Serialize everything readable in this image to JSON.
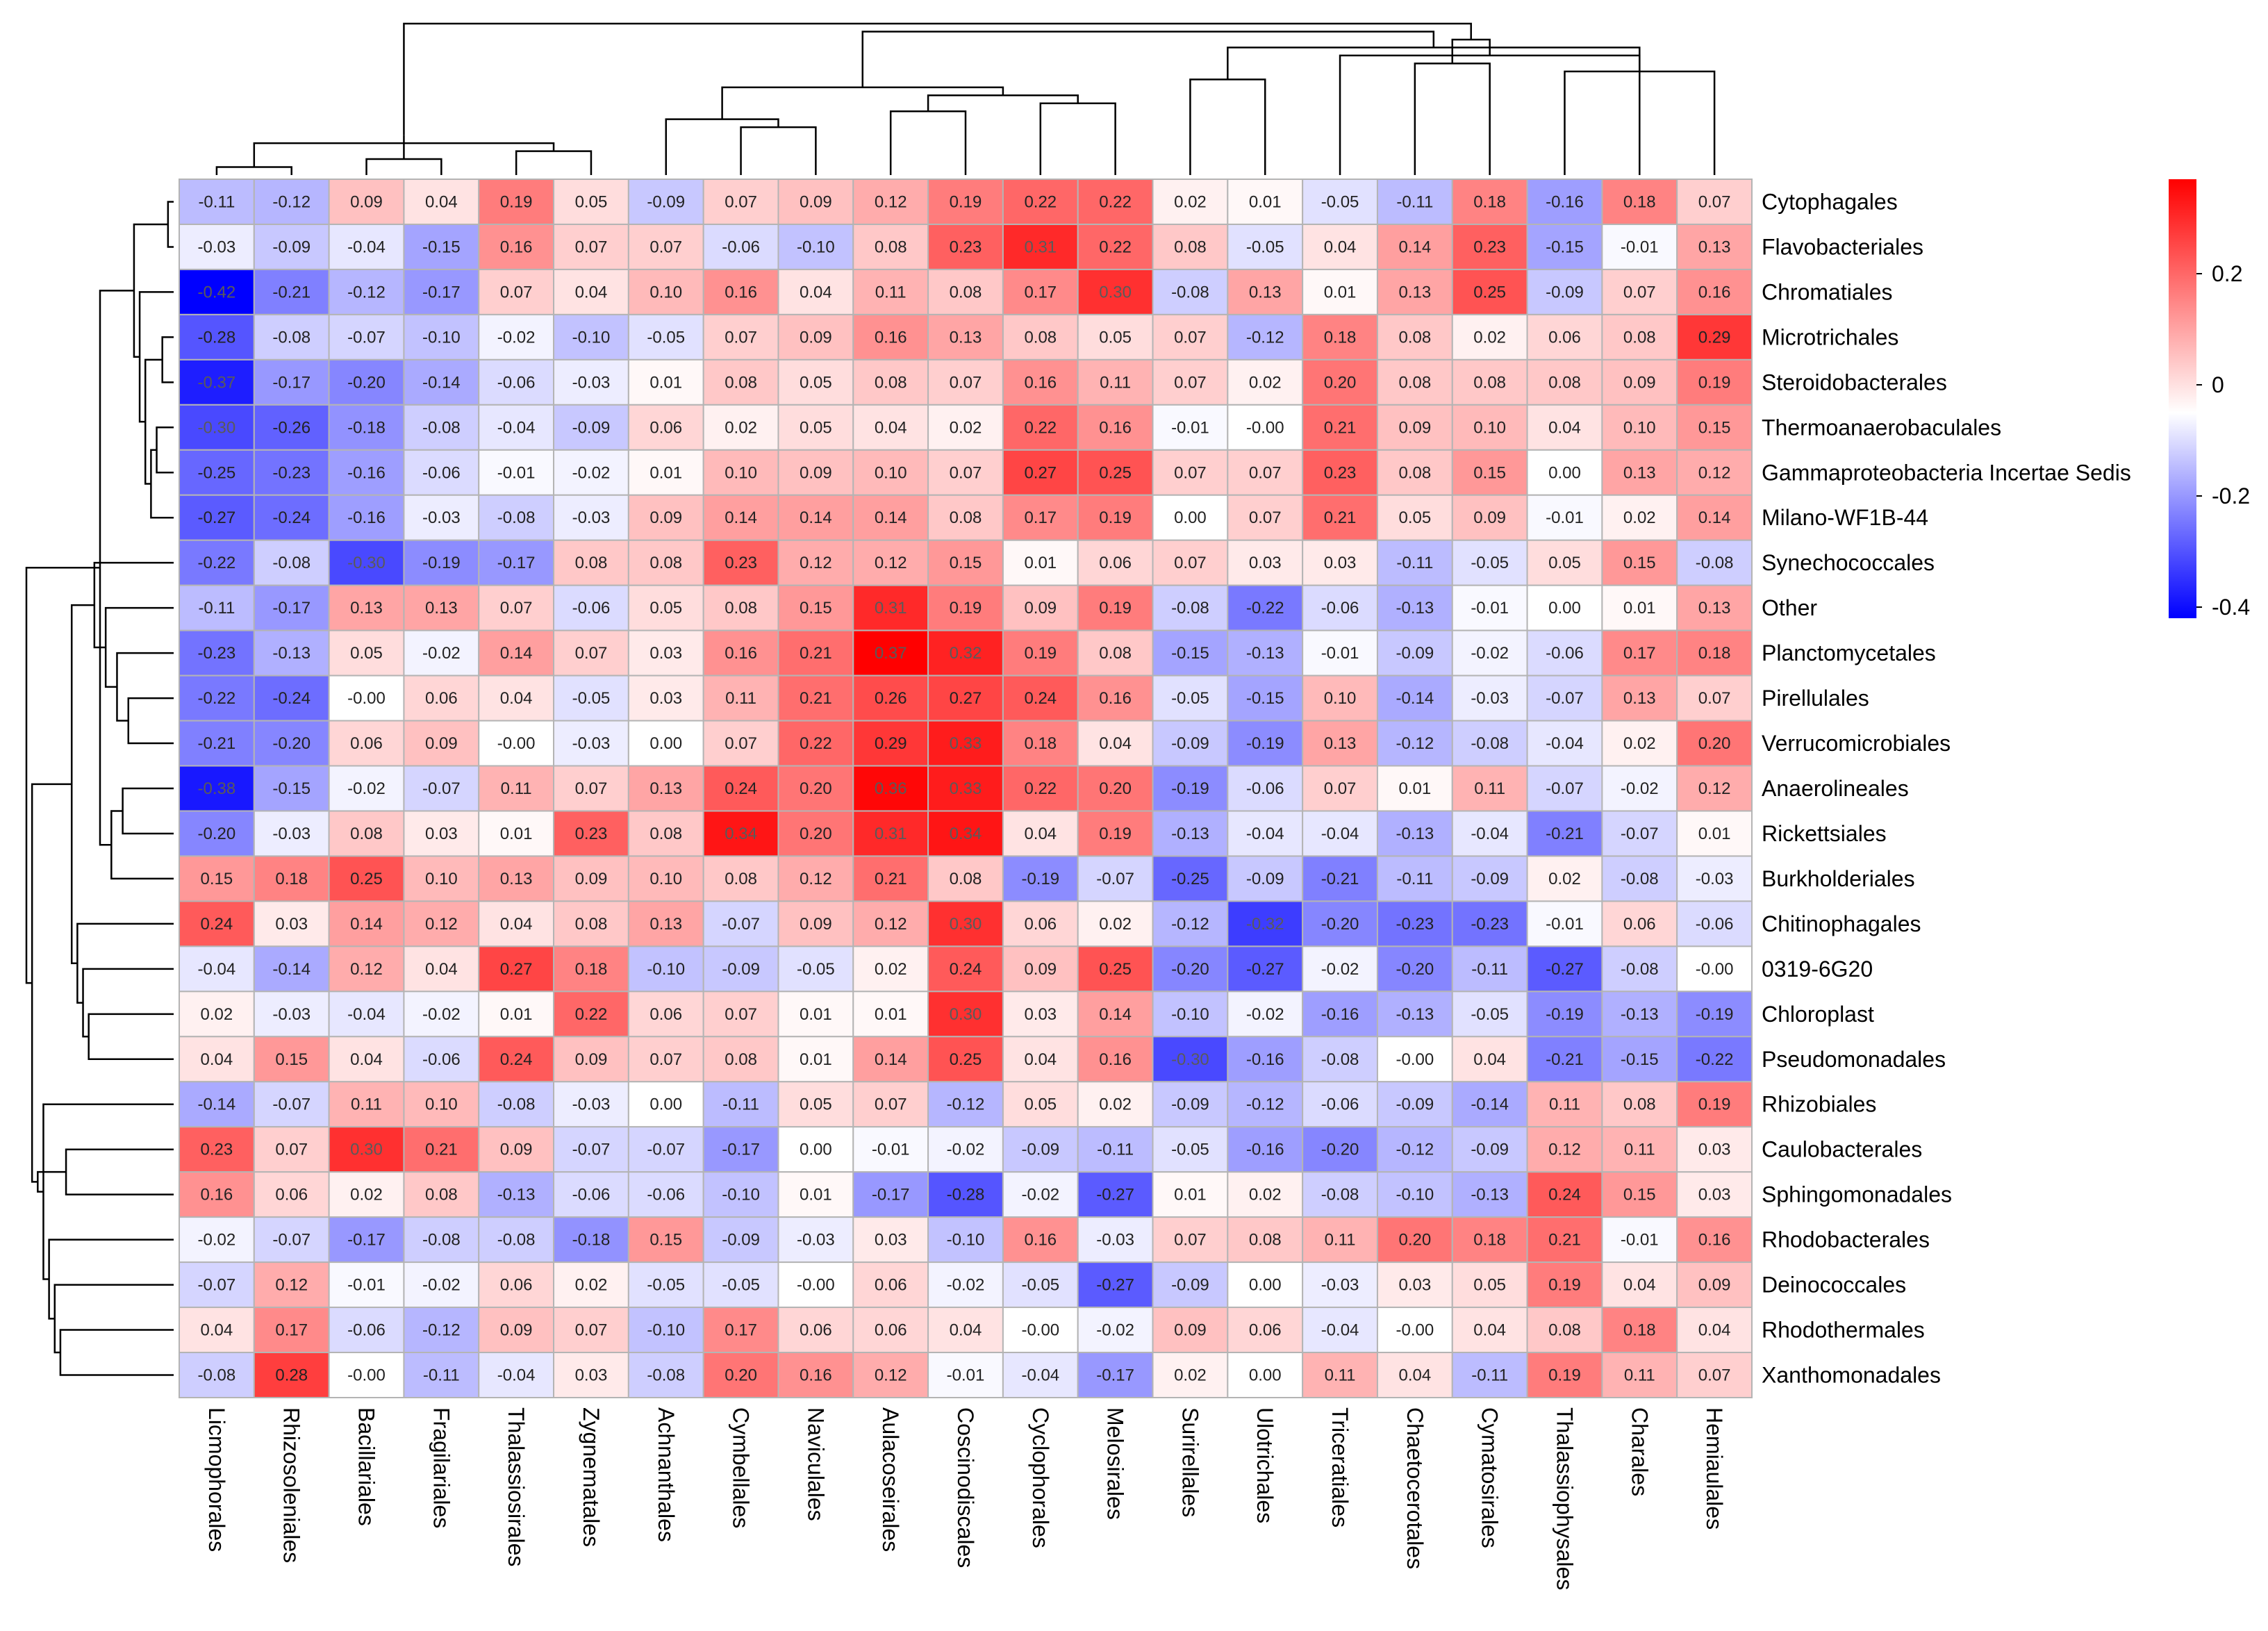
{
  "chart_data": {
    "type": "heatmap",
    "title": "",
    "columns": [
      "Licmophorales",
      "Rhizosoleniales",
      "Bacillariales",
      "Fragilariales",
      "Thalassiosirales",
      "Zygnematales",
      "Achnanthales",
      "Cymbellales",
      "Naviculales",
      "Aulacoseirales",
      "Coscinodiscales",
      "Cyclophorales",
      "Melosirales",
      "Surirellales",
      "Ulotrichales",
      "Triceratiales",
      "Chaetocerotales",
      "Cymatosirales",
      "Thalassiophysales",
      "Charales",
      "Hemiaulales"
    ],
    "rows": [
      "Cytophagales",
      "Flavobacteriales",
      "Chromatiales",
      "Microtrichales",
      "Steroidobacterales",
      "Thermoanaerobaculales",
      "Gammaproteobacteria Incertae Sedis",
      "Milano-WF1B-44",
      "Synechococcales",
      "Other",
      "Planctomycetales",
      "Pirellulales",
      "Verrucomicrobiales",
      "Anaerolineales",
      "Rickettsiales",
      "Burkholderiales",
      "Chitinophagales",
      "0319-6G20",
      "Chloroplast",
      "Pseudomonadales",
      "Rhizobiales",
      "Caulobacterales",
      "Sphingomonadales",
      "Rhodobacterales",
      "Deinococcales",
      "Rhodothermales",
      "Xanthomonadales"
    ],
    "values": [
      [
        -0.11,
        -0.12,
        0.09,
        0.04,
        0.19,
        0.05,
        -0.09,
        0.07,
        0.09,
        0.12,
        0.19,
        0.22,
        0.22,
        0.02,
        0.01,
        -0.05,
        -0.11,
        0.18,
        -0.16,
        0.18,
        0.07
      ],
      [
        -0.03,
        -0.09,
        -0.04,
        -0.15,
        0.16,
        0.07,
        0.07,
        -0.06,
        -0.1,
        0.08,
        0.23,
        0.31,
        0.22,
        0.08,
        -0.05,
        0.04,
        0.14,
        0.23,
        -0.15,
        -0.01,
        0.13
      ],
      [
        -0.42,
        -0.21,
        -0.12,
        -0.17,
        0.07,
        0.04,
        0.1,
        0.16,
        0.04,
        0.11,
        0.08,
        0.17,
        0.3,
        -0.08,
        0.13,
        0.01,
        0.13,
        0.25,
        -0.09,
        0.07,
        0.16
      ],
      [
        -0.28,
        -0.08,
        -0.07,
        -0.1,
        -0.02,
        -0.1,
        -0.05,
        0.07,
        0.09,
        0.16,
        0.13,
        0.08,
        0.05,
        0.07,
        -0.12,
        0.18,
        0.08,
        0.02,
        0.06,
        0.08,
        0.29
      ],
      [
        -0.37,
        -0.17,
        -0.2,
        -0.14,
        -0.06,
        -0.03,
        0.01,
        0.08,
        0.05,
        0.08,
        0.07,
        0.16,
        0.11,
        0.07,
        0.02,
        0.2,
        0.08,
        0.08,
        0.08,
        0.09,
        0.19
      ],
      [
        -0.3,
        -0.26,
        -0.18,
        -0.08,
        -0.04,
        -0.09,
        0.06,
        0.02,
        0.05,
        0.04,
        0.02,
        0.22,
        0.16,
        -0.01,
        -0.0,
        0.21,
        0.09,
        0.1,
        0.04,
        0.1,
        0.15
      ],
      [
        -0.25,
        -0.23,
        -0.16,
        -0.06,
        -0.01,
        -0.02,
        0.01,
        0.1,
        0.09,
        0.1,
        0.07,
        0.27,
        0.25,
        0.07,
        0.07,
        0.23,
        0.08,
        0.15,
        0.0,
        0.13,
        0.12
      ],
      [
        -0.27,
        -0.24,
        -0.16,
        -0.03,
        -0.08,
        -0.03,
        0.09,
        0.14,
        0.14,
        0.14,
        0.08,
        0.17,
        0.19,
        0.0,
        0.07,
        0.21,
        0.05,
        0.09,
        -0.01,
        0.02,
        0.14
      ],
      [
        -0.22,
        -0.08,
        -0.3,
        -0.19,
        -0.17,
        0.08,
        0.08,
        0.23,
        0.12,
        0.12,
        0.15,
        0.01,
        0.06,
        0.07,
        0.03,
        0.03,
        -0.11,
        -0.05,
        0.05,
        0.15,
        -0.08
      ],
      [
        -0.11,
        -0.17,
        0.13,
        0.13,
        0.07,
        -0.06,
        0.05,
        0.08,
        0.15,
        0.31,
        0.19,
        0.09,
        0.19,
        -0.08,
        -0.22,
        -0.06,
        -0.13,
        -0.01,
        0.0,
        0.01,
        0.13
      ],
      [
        -0.23,
        -0.13,
        0.05,
        -0.02,
        0.14,
        0.07,
        0.03,
        0.16,
        0.21,
        0.37,
        0.32,
        0.19,
        0.08,
        -0.15,
        -0.13,
        -0.01,
        -0.09,
        -0.02,
        -0.06,
        0.17,
        0.18
      ],
      [
        -0.22,
        -0.24,
        -0.0,
        0.06,
        0.04,
        -0.05,
        0.03,
        0.11,
        0.21,
        0.26,
        0.27,
        0.24,
        0.16,
        -0.05,
        -0.15,
        0.1,
        -0.14,
        -0.03,
        -0.07,
        0.13,
        0.07
      ],
      [
        -0.21,
        -0.2,
        0.06,
        0.09,
        -0.0,
        -0.03,
        0.0,
        0.07,
        0.22,
        0.29,
        0.33,
        0.18,
        0.04,
        -0.09,
        -0.19,
        0.13,
        -0.12,
        -0.08,
        -0.04,
        0.02,
        0.2
      ],
      [
        -0.38,
        -0.15,
        -0.02,
        -0.07,
        0.11,
        0.07,
        0.13,
        0.24,
        0.2,
        0.36,
        0.33,
        0.22,
        0.2,
        -0.19,
        -0.06,
        0.07,
        0.01,
        0.11,
        -0.07,
        -0.02,
        0.12
      ],
      [
        -0.2,
        -0.03,
        0.08,
        0.03,
        0.01,
        0.23,
        0.08,
        0.34,
        0.2,
        0.31,
        0.34,
        0.04,
        0.19,
        -0.13,
        -0.04,
        -0.04,
        -0.13,
        -0.04,
        -0.21,
        -0.07,
        0.01
      ],
      [
        0.15,
        0.18,
        0.25,
        0.1,
        0.13,
        0.09,
        0.1,
        0.08,
        0.12,
        0.21,
        0.08,
        -0.19,
        -0.07,
        -0.25,
        -0.09,
        -0.21,
        -0.11,
        -0.09,
        0.02,
        -0.08,
        -0.03
      ],
      [
        0.24,
        0.03,
        0.14,
        0.12,
        0.04,
        0.08,
        0.13,
        -0.07,
        0.09,
        0.12,
        0.3,
        0.06,
        0.02,
        -0.12,
        -0.32,
        -0.2,
        -0.23,
        -0.23,
        -0.01,
        0.06,
        -0.06
      ],
      [
        -0.04,
        -0.14,
        0.12,
        0.04,
        0.27,
        0.18,
        -0.1,
        -0.09,
        -0.05,
        0.02,
        0.24,
        0.09,
        0.25,
        -0.2,
        -0.27,
        -0.02,
        -0.2,
        -0.11,
        -0.27,
        -0.08,
        -0.0
      ],
      [
        0.02,
        -0.03,
        -0.04,
        -0.02,
        0.01,
        0.22,
        0.06,
        0.07,
        0.01,
        0.01,
        0.3,
        0.03,
        0.14,
        -0.1,
        -0.02,
        -0.16,
        -0.13,
        -0.05,
        -0.19,
        -0.13,
        -0.19
      ],
      [
        0.04,
        0.15,
        0.04,
        -0.06,
        0.24,
        0.09,
        0.07,
        0.08,
        0.01,
        0.14,
        0.25,
        0.04,
        0.16,
        -0.3,
        -0.16,
        -0.08,
        -0.0,
        0.04,
        -0.21,
        -0.15,
        -0.22
      ],
      [
        -0.14,
        -0.07,
        0.11,
        0.1,
        -0.08,
        -0.03,
        0.0,
        -0.11,
        0.05,
        0.07,
        -0.12,
        0.05,
        0.02,
        -0.09,
        -0.12,
        -0.06,
        -0.09,
        -0.14,
        0.11,
        0.08,
        0.19
      ],
      [
        0.23,
        0.07,
        0.3,
        0.21,
        0.09,
        -0.07,
        -0.07,
        -0.17,
        0.0,
        -0.01,
        -0.02,
        -0.09,
        -0.11,
        -0.05,
        -0.16,
        -0.2,
        -0.12,
        -0.09,
        0.12,
        0.11,
        0.03
      ],
      [
        0.16,
        0.06,
        0.02,
        0.08,
        -0.13,
        -0.06,
        -0.06,
        -0.1,
        0.01,
        -0.17,
        -0.28,
        -0.02,
        -0.27,
        0.01,
        0.02,
        -0.08,
        -0.1,
        -0.13,
        0.24,
        0.15,
        0.03
      ],
      [
        -0.02,
        -0.07,
        -0.17,
        -0.08,
        -0.08,
        -0.18,
        0.15,
        -0.09,
        -0.03,
        0.03,
        -0.1,
        0.16,
        -0.03,
        0.07,
        0.08,
        0.11,
        0.2,
        0.18,
        0.21,
        -0.01,
        0.16
      ],
      [
        -0.07,
        0.12,
        -0.01,
        -0.02,
        0.06,
        0.02,
        -0.05,
        -0.05,
        -0.0,
        0.06,
        -0.02,
        -0.05,
        -0.27,
        -0.09,
        0.0,
        -0.03,
        0.03,
        0.05,
        0.19,
        0.04,
        0.09
      ],
      [
        0.04,
        0.17,
        -0.06,
        -0.12,
        0.09,
        0.07,
        -0.1,
        0.17,
        0.06,
        0.06,
        0.04,
        -0.0,
        -0.02,
        0.09,
        0.06,
        -0.04,
        -0.0,
        0.04,
        0.08,
        0.18,
        0.04
      ],
      [
        -0.08,
        0.28,
        -0.0,
        -0.11,
        -0.04,
        0.03,
        -0.08,
        0.2,
        0.16,
        0.12,
        -0.01,
        -0.04,
        -0.17,
        0.02,
        0.0,
        0.11,
        0.04,
        -0.11,
        0.19,
        0.11,
        0.07
      ]
    ],
    "value_range": [
      -0.42,
      0.37
    ],
    "color_scale": {
      "low": "#0000ff",
      "mid": "#ffffff",
      "high": "#ff0000"
    },
    "cell_border_color": "#b4b4b4",
    "legend": {
      "ticks": [
        0.2,
        0,
        -0.2,
        -0.4
      ],
      "tick_labels": [
        "0.2",
        "0",
        "-0.2",
        "-0.4"
      ],
      "position": "right"
    },
    "column_dendrogram": [
      [
        0,
        1
      ],
      [
        2,
        3
      ],
      [
        4,
        5
      ],
      [
        21,
        23
      ],
      [
        22,
        24
      ],
      [
        7,
        8
      ],
      [
        6,
        26
      ],
      [
        9,
        10
      ],
      [
        11,
        12
      ],
      [
        28,
        29
      ],
      [
        27,
        30
      ],
      [
        13,
        14
      ],
      [
        18,
        20
      ],
      [
        16,
        17
      ],
      [
        15,
        33
      ],
      [
        32,
        19
      ],
      [
        34,
        35
      ],
      [
        31,
        36
      ],
      [
        25,
        37
      ]
    ],
    "row_dendrogram": [
      [
        0,
        1
      ],
      [
        3,
        4
      ],
      [
        5,
        6
      ],
      [
        29,
        7
      ],
      [
        28,
        30
      ],
      [
        2,
        31
      ],
      [
        27,
        32
      ],
      [
        11,
        12
      ],
      [
        13,
        14
      ],
      [
        10,
        34
      ],
      [
        35,
        15
      ],
      [
        9,
        36
      ],
      [
        37,
        33
      ],
      [
        8,
        38
      ],
      [
        18,
        19
      ],
      [
        17,
        41
      ],
      [
        16,
        42
      ],
      [
        40,
        43
      ],
      [
        21,
        22
      ],
      [
        25,
        26
      ],
      [
        24,
        46
      ],
      [
        23,
        47
      ],
      [
        20,
        48
      ],
      [
        45,
        49
      ],
      [
        44,
        50
      ],
      [
        39,
        51
      ]
    ]
  }
}
